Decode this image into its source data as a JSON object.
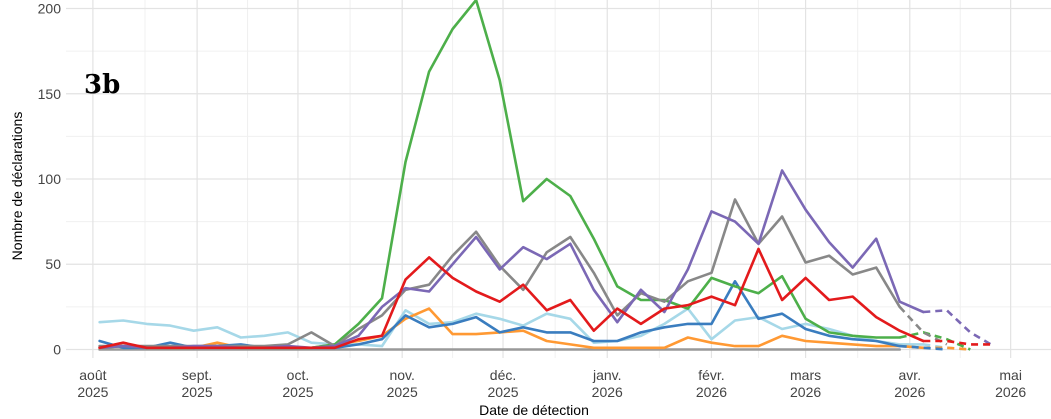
{
  "chart_data": {
    "type": "line",
    "panel_label": "3b",
    "xlabel": "Date de détection",
    "ylabel": "Nombre de déclarations",
    "ylim": [
      -5,
      205
    ],
    "xlim": [
      "2025-07-24",
      "2026-05-13"
    ],
    "grid": true,
    "legend": "none",
    "y_ticks": [
      0,
      50,
      100,
      150,
      200
    ],
    "x_ticks": [
      {
        "date": "2025-08-01",
        "label_month": "août",
        "label_year": "2025"
      },
      {
        "date": "2025-09-01",
        "label_month": "sept.",
        "label_year": "2025"
      },
      {
        "date": "2025-10-01",
        "label_month": "oct.",
        "label_year": "2025"
      },
      {
        "date": "2025-11-01",
        "label_month": "nov.",
        "label_year": "2025"
      },
      {
        "date": "2025-12-01",
        "label_month": "déc.",
        "label_year": "2025"
      },
      {
        "date": "2026-01-01",
        "label_month": "janv.",
        "label_year": "2026"
      },
      {
        "date": "2026-02-01",
        "label_month": "févr.",
        "label_year": "2026"
      },
      {
        "date": "2026-03-01",
        "label_month": "mars",
        "label_year": "2026"
      },
      {
        "date": "2026-04-01",
        "label_month": "avr.",
        "label_year": "2026"
      },
      {
        "date": "2026-05-01",
        "label_month": "mai",
        "label_year": "2026"
      }
    ],
    "series": [
      {
        "color": "#a6d8e8",
        "x": [
          "2025-08-03",
          "2025-08-10",
          "2025-08-17",
          "2025-08-24",
          "2025-08-31",
          "2025-09-07",
          "2025-09-14",
          "2025-09-21",
          "2025-09-28",
          "2025-10-05",
          "2025-10-12",
          "2025-10-19",
          "2025-10-26",
          "2025-11-02",
          "2025-11-09",
          "2025-11-16",
          "2025-11-23",
          "2025-11-30",
          "2025-12-07",
          "2025-12-14",
          "2025-12-21",
          "2025-12-28",
          "2026-01-04",
          "2026-01-11",
          "2026-01-18",
          "2026-01-25",
          "2026-02-01",
          "2026-02-08",
          "2026-02-15",
          "2026-02-22",
          "2026-03-01",
          "2026-03-08",
          "2026-03-15",
          "2026-03-22",
          "2026-03-29",
          "2026-04-05"
        ],
        "values": [
          16,
          17,
          15,
          14,
          11,
          13,
          7,
          8,
          10,
          4,
          3,
          3,
          2,
          23,
          15,
          16,
          21,
          18,
          14,
          21,
          18,
          4,
          5,
          8,
          15,
          24,
          6,
          17,
          19,
          12,
          15,
          12,
          8,
          5,
          3,
          3
        ],
        "dashed_x": [
          "2026-04-05",
          "2026-04-12",
          "2026-04-19"
        ],
        "dashed_values": [
          3,
          1,
          0
        ]
      },
      {
        "color": "#999999",
        "x": [
          "2025-08-03",
          "2025-08-10",
          "2025-08-17",
          "2025-08-24",
          "2025-08-31",
          "2025-09-07",
          "2025-09-14",
          "2025-09-21",
          "2025-09-28",
          "2025-10-05",
          "2025-10-12",
          "2025-10-19",
          "2025-10-26",
          "2025-11-02",
          "2025-11-09",
          "2025-11-16",
          "2025-11-23",
          "2025-11-30",
          "2025-12-07",
          "2025-12-14",
          "2025-12-21",
          "2025-12-28",
          "2026-01-04",
          "2026-01-11",
          "2026-01-18",
          "2026-01-25",
          "2026-02-01",
          "2026-02-08",
          "2026-02-15",
          "2026-02-22",
          "2026-03-01",
          "2026-03-08",
          "2026-03-15",
          "2026-03-22",
          "2026-03-29"
        ],
        "values": [
          0,
          0,
          0,
          0,
          0,
          0,
          0,
          0,
          0,
          0,
          0,
          0,
          0,
          0,
          0,
          0,
          0,
          0,
          0,
          0,
          0,
          0,
          0,
          0,
          0,
          0,
          0,
          0,
          0,
          0,
          0,
          0,
          0,
          0,
          0
        ],
        "dashed_x": [],
        "dashed_values": []
      },
      {
        "color": "#ff9933",
        "x": [
          "2025-08-03",
          "2025-08-10",
          "2025-08-17",
          "2025-08-24",
          "2025-08-31",
          "2025-09-07",
          "2025-09-14",
          "2025-09-21",
          "2025-09-28",
          "2025-10-05",
          "2025-10-12",
          "2025-10-19",
          "2025-10-26",
          "2025-11-02",
          "2025-11-09",
          "2025-11-16",
          "2025-11-23",
          "2025-11-30",
          "2025-12-07",
          "2025-12-14",
          "2025-12-21",
          "2025-12-28",
          "2026-01-04",
          "2026-01-11",
          "2026-01-18",
          "2026-01-25",
          "2026-02-01",
          "2026-02-08",
          "2026-02-15",
          "2026-02-22",
          "2026-03-01",
          "2026-03-08",
          "2026-03-15",
          "2026-03-22",
          "2026-03-29",
          "2026-04-05"
        ],
        "values": [
          1,
          2,
          1,
          1,
          1,
          4,
          1,
          1,
          1,
          1,
          3,
          5,
          8,
          18,
          24,
          9,
          9,
          10,
          11,
          5,
          3,
          1,
          1,
          1,
          1,
          7,
          4,
          2,
          2,
          8,
          5,
          4,
          3,
          2,
          2,
          1
        ],
        "dashed_x": [
          "2026-04-05",
          "2026-04-12",
          "2026-04-19"
        ],
        "dashed_values": [
          1,
          1,
          0
        ]
      },
      {
        "color": "#3a7dbf",
        "x": [
          "2025-08-03",
          "2025-08-10",
          "2025-08-17",
          "2025-08-24",
          "2025-08-31",
          "2025-09-07",
          "2025-09-14",
          "2025-09-21",
          "2025-09-28",
          "2025-10-05",
          "2025-10-12",
          "2025-10-19",
          "2025-10-26",
          "2025-11-02",
          "2025-11-09",
          "2025-11-16",
          "2025-11-23",
          "2025-11-30",
          "2025-12-07",
          "2025-12-14",
          "2025-12-21",
          "2025-12-28",
          "2026-01-04",
          "2026-01-11",
          "2026-01-18",
          "2026-01-25",
          "2026-02-01",
          "2026-02-08",
          "2026-02-15",
          "2026-02-22",
          "2026-03-01",
          "2026-03-08",
          "2026-03-15",
          "2026-03-22",
          "2026-03-29"
        ],
        "values": [
          5,
          1,
          1,
          4,
          1,
          2,
          3,
          1,
          1,
          1,
          1,
          3,
          6,
          20,
          13,
          15,
          19,
          10,
          13,
          10,
          10,
          5,
          5,
          10,
          13,
          15,
          15,
          40,
          18,
          21,
          12,
          8,
          6,
          5,
          2
        ],
        "dashed_x": [
          "2026-03-29",
          "2026-04-05",
          "2026-04-12"
        ],
        "dashed_values": [
          2,
          1,
          0
        ]
      },
      {
        "color": "#4daf4a",
        "x": [
          "2025-08-03",
          "2025-08-10",
          "2025-08-17",
          "2025-08-24",
          "2025-08-31",
          "2025-09-07",
          "2025-09-14",
          "2025-09-21",
          "2025-09-28",
          "2025-10-05",
          "2025-10-12",
          "2025-10-19",
          "2025-10-26",
          "2025-11-02",
          "2025-11-09",
          "2025-11-16",
          "2025-11-23",
          "2025-11-30",
          "2025-12-07",
          "2025-12-14",
          "2025-12-21",
          "2025-12-28",
          "2026-01-04",
          "2026-01-11",
          "2026-01-18",
          "2026-01-25",
          "2026-02-01",
          "2026-02-08",
          "2026-02-15",
          "2026-02-22",
          "2026-03-01",
          "2026-03-08",
          "2026-03-15",
          "2026-03-22",
          "2026-03-29"
        ],
        "values": [
          1,
          2,
          1,
          1,
          1,
          2,
          1,
          1,
          1,
          1,
          3,
          15,
          30,
          110,
          163,
          188,
          205,
          158,
          87,
          100,
          90,
          65,
          37,
          29,
          29,
          24,
          42,
          37,
          33,
          43,
          18,
          10,
          8,
          7,
          7
        ],
        "dashed_x": [
          "2026-03-29",
          "2026-04-05",
          "2026-04-12",
          "2026-04-19"
        ],
        "dashed_values": [
          7,
          10,
          6,
          0
        ]
      },
      {
        "color": "#888888",
        "x": [
          "2025-08-03",
          "2025-08-10",
          "2025-08-17",
          "2025-08-24",
          "2025-08-31",
          "2025-09-07",
          "2025-09-14",
          "2025-09-21",
          "2025-09-28",
          "2025-10-05",
          "2025-10-12",
          "2025-10-19",
          "2025-10-26",
          "2025-11-02",
          "2025-11-09",
          "2025-11-16",
          "2025-11-23",
          "2025-11-30",
          "2025-12-07",
          "2025-12-14",
          "2025-12-21",
          "2025-12-28",
          "2026-01-04",
          "2026-01-11",
          "2026-01-18",
          "2026-01-25",
          "2026-02-01",
          "2026-02-08",
          "2026-02-15",
          "2026-02-22",
          "2026-03-01",
          "2026-03-08",
          "2026-03-15",
          "2026-03-22",
          "2026-03-29"
        ],
        "values": [
          2,
          2,
          2,
          2,
          2,
          2,
          2,
          2,
          3,
          10,
          2,
          12,
          20,
          35,
          38,
          55,
          69,
          49,
          35,
          57,
          66,
          45,
          20,
          33,
          28,
          40,
          45,
          88,
          62,
          78,
          51,
          55,
          44,
          48,
          25
        ],
        "dashed_x": [
          "2026-03-29",
          "2026-04-05",
          "2026-04-12"
        ],
        "dashed_values": [
          25,
          10,
          3
        ]
      },
      {
        "color": "#7b68b5",
        "x": [
          "2025-08-03",
          "2025-08-10",
          "2025-08-17",
          "2025-08-24",
          "2025-08-31",
          "2025-09-07",
          "2025-09-14",
          "2025-09-21",
          "2025-09-28",
          "2025-10-05",
          "2025-10-12",
          "2025-10-19",
          "2025-10-26",
          "2025-11-02",
          "2025-11-09",
          "2025-11-16",
          "2025-11-23",
          "2025-11-30",
          "2025-12-07",
          "2025-12-14",
          "2025-12-21",
          "2025-12-28",
          "2026-01-04",
          "2026-01-11",
          "2026-01-18",
          "2026-01-25",
          "2026-02-01",
          "2026-02-08",
          "2026-02-15",
          "2026-02-22",
          "2026-03-01",
          "2026-03-08",
          "2026-03-15",
          "2026-03-22",
          "2026-03-29",
          "2026-04-05"
        ],
        "values": [
          1,
          2,
          1,
          1,
          2,
          2,
          1,
          1,
          2,
          1,
          2,
          8,
          25,
          36,
          34,
          50,
          66,
          47,
          60,
          53,
          62,
          35,
          16,
          35,
          22,
          47,
          81,
          75,
          62,
          105,
          82,
          63,
          48,
          65,
          28,
          22
        ],
        "dashed_x": [
          "2026-04-05",
          "2026-04-12",
          "2026-04-19",
          "2026-04-26"
        ],
        "dashed_values": [
          22,
          23,
          10,
          2
        ]
      },
      {
        "color": "#e31a1c",
        "x": [
          "2025-08-03",
          "2025-08-10",
          "2025-08-17",
          "2025-08-24",
          "2025-08-31",
          "2025-09-07",
          "2025-09-14",
          "2025-09-21",
          "2025-09-28",
          "2025-10-05",
          "2025-10-12",
          "2025-10-19",
          "2025-10-26",
          "2025-11-02",
          "2025-11-09",
          "2025-11-16",
          "2025-11-23",
          "2025-11-30",
          "2025-12-07",
          "2025-12-14",
          "2025-12-21",
          "2025-12-28",
          "2026-01-04",
          "2026-01-11",
          "2026-01-18",
          "2026-01-25",
          "2026-02-01",
          "2026-02-08",
          "2026-02-15",
          "2026-02-22",
          "2026-03-01",
          "2026-03-08",
          "2026-03-15",
          "2026-03-22",
          "2026-03-29",
          "2026-04-05"
        ],
        "values": [
          1,
          4,
          1,
          1,
          1,
          1,
          1,
          1,
          1,
          1,
          1,
          6,
          8,
          41,
          54,
          42,
          34,
          28,
          38,
          23,
          29,
          11,
          24,
          15,
          24,
          26,
          31,
          26,
          59,
          29,
          42,
          29,
          31,
          19,
          11,
          5
        ],
        "dashed_x": [
          "2026-04-05",
          "2026-04-12",
          "2026-04-19",
          "2026-04-26"
        ],
        "dashed_values": [
          5,
          5,
          3,
          3
        ]
      }
    ]
  }
}
